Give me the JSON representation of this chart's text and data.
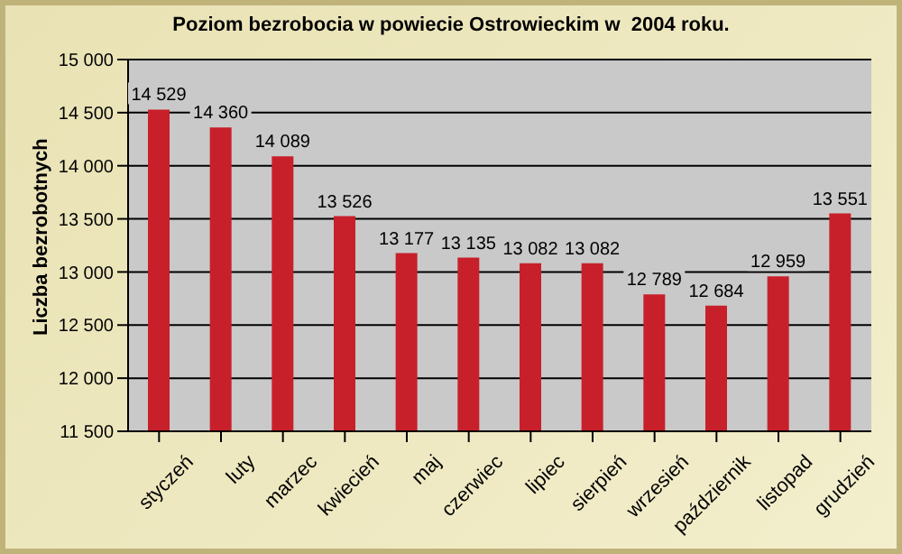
{
  "chart_data": {
    "type": "bar",
    "title": "Poziom bezrobocia w powiecie Ostrowieckim w  2004 roku.",
    "ylabel": "Liczba bezrobotnych",
    "categories": [
      "styczeń",
      "luty",
      "marzec",
      "kwiecień",
      "maj",
      "czerwiec",
      "lipiec",
      "sierpień",
      "wrzesień",
      "październik",
      "listopad",
      "grudzień"
    ],
    "values": [
      14529,
      14360,
      14089,
      13526,
      13177,
      13135,
      13082,
      13082,
      12789,
      12684,
      12959,
      13551
    ],
    "value_labels": [
      "14 529",
      "14 360",
      "14 089",
      "13 526",
      "13 177",
      "13 135",
      "13 082",
      "13 082",
      "12 789",
      "12 684",
      "12 959",
      "13 551"
    ],
    "color": "#c8202a",
    "ylim": [
      11500,
      15000
    ],
    "yticks": [
      {
        "value": 11500,
        "label": "11 500"
      },
      {
        "value": 12000,
        "label": "12 000"
      },
      {
        "value": 12500,
        "label": "12 500"
      },
      {
        "value": 13000,
        "label": "13 000"
      },
      {
        "value": 13500,
        "label": "13 500"
      },
      {
        "value": 14000,
        "label": "14 000"
      },
      {
        "value": 14500,
        "label": "14 500"
      },
      {
        "value": 15000,
        "label": "15 000"
      }
    ],
    "grid": "y",
    "legend": false
  }
}
